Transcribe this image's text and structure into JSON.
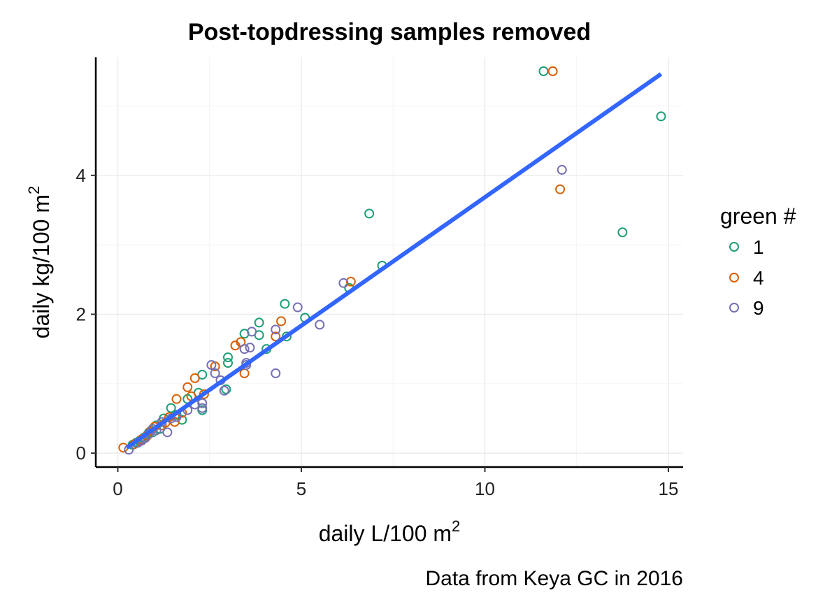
{
  "chart_data": {
    "type": "scatter",
    "title": "Post-topdressing samples removed",
    "xlabel": "daily L/100 m",
    "xlabel_sup": "2",
    "ylabel": "daily kg/100 m",
    "ylabel_sup": "2",
    "caption": "Data from Keya GC in 2016",
    "xlim": [
      -0.6,
      15.4
    ],
    "ylim": [
      -0.2,
      5.7
    ],
    "x_ticks": [
      0,
      5,
      10,
      15
    ],
    "y_ticks": [
      0,
      2,
      4
    ],
    "grid": true,
    "legend": {
      "title": "green #",
      "placement": "right",
      "entries": [
        "1",
        "4",
        "9"
      ]
    },
    "colors": {
      "1": "#1b9e77",
      "4": "#d95f02",
      "9": "#7570b3",
      "fit_line": "#3366ff"
    },
    "fit_line": {
      "x": [
        0.25,
        14.8
      ],
      "y": [
        0.08,
        5.46
      ]
    },
    "series": [
      {
        "name": "1",
        "points": [
          [
            11.6,
            5.5
          ],
          [
            14.8,
            4.85
          ],
          [
            13.75,
            3.18
          ],
          [
            6.85,
            3.45
          ],
          [
            7.2,
            2.7
          ],
          [
            6.3,
            2.38
          ],
          [
            4.55,
            2.15
          ],
          [
            5.1,
            1.95
          ],
          [
            3.85,
            1.88
          ],
          [
            3.85,
            1.7
          ],
          [
            3.45,
            1.72
          ],
          [
            4.6,
            1.68
          ],
          [
            4.05,
            1.5
          ],
          [
            3.0,
            1.38
          ],
          [
            3.0,
            1.3
          ],
          [
            2.3,
            1.13
          ],
          [
            2.2,
            0.87
          ],
          [
            1.9,
            0.78
          ],
          [
            2.3,
            0.62
          ],
          [
            1.75,
            0.48
          ],
          [
            1.45,
            0.65
          ],
          [
            1.25,
            0.5
          ],
          [
            1.05,
            0.4
          ],
          [
            0.85,
            0.3
          ],
          [
            0.6,
            0.18
          ],
          [
            0.4,
            0.12
          ],
          [
            2.95,
            0.92
          ],
          [
            0.8,
            0.26
          ],
          [
            0.7,
            0.22
          ],
          [
            0.5,
            0.15
          ],
          [
            1.6,
            0.55
          ],
          [
            1.15,
            0.35
          ],
          [
            0.95,
            0.3
          ]
        ]
      },
      {
        "name": "4",
        "points": [
          [
            11.85,
            5.5
          ],
          [
            12.05,
            3.8
          ],
          [
            6.35,
            2.47
          ],
          [
            4.45,
            1.9
          ],
          [
            3.2,
            1.55
          ],
          [
            3.35,
            1.6
          ],
          [
            4.3,
            1.68
          ],
          [
            3.45,
            1.15
          ],
          [
            2.65,
            1.25
          ],
          [
            2.1,
            1.08
          ],
          [
            1.9,
            0.95
          ],
          [
            2.0,
            0.82
          ],
          [
            1.6,
            0.78
          ],
          [
            2.35,
            0.85
          ],
          [
            1.75,
            0.58
          ],
          [
            1.4,
            0.52
          ],
          [
            1.2,
            0.4
          ],
          [
            1.0,
            0.38
          ],
          [
            0.8,
            0.25
          ],
          [
            0.15,
            0.08
          ],
          [
            0.65,
            0.2
          ],
          [
            1.55,
            0.45
          ],
          [
            0.9,
            0.32
          ],
          [
            0.45,
            0.13
          ],
          [
            1.3,
            0.44
          ]
        ]
      },
      {
        "name": "9",
        "points": [
          [
            12.1,
            4.08
          ],
          [
            6.15,
            2.45
          ],
          [
            4.9,
            2.1
          ],
          [
            5.5,
            1.85
          ],
          [
            4.3,
            1.78
          ],
          [
            3.65,
            1.75
          ],
          [
            3.6,
            1.52
          ],
          [
            3.45,
            1.5
          ],
          [
            4.3,
            1.15
          ],
          [
            3.5,
            1.3
          ],
          [
            3.5,
            1.27
          ],
          [
            2.55,
            1.27
          ],
          [
            2.65,
            1.15
          ],
          [
            2.8,
            1.05
          ],
          [
            2.9,
            0.9
          ],
          [
            2.3,
            0.72
          ],
          [
            2.3,
            0.65
          ],
          [
            1.9,
            0.62
          ],
          [
            1.6,
            0.52
          ],
          [
            1.35,
            0.3
          ],
          [
            1.2,
            0.45
          ],
          [
            0.95,
            0.35
          ],
          [
            0.75,
            0.22
          ],
          [
            0.3,
            0.05
          ],
          [
            0.55,
            0.15
          ],
          [
            1.45,
            0.5
          ],
          [
            1.05,
            0.33
          ],
          [
            0.85,
            0.28
          ],
          [
            2.1,
            0.7
          ],
          [
            0.65,
            0.18
          ]
        ]
      }
    ]
  }
}
